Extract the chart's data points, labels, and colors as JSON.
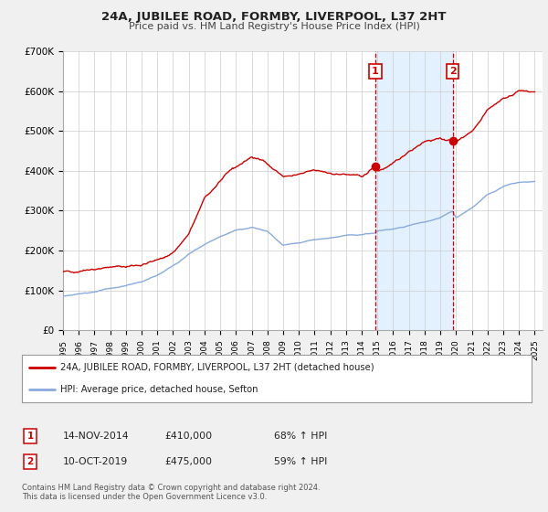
{
  "title": "24A, JUBILEE ROAD, FORMBY, LIVERPOOL, L37 2HT",
  "subtitle": "Price paid vs. HM Land Registry's House Price Index (HPI)",
  "ylim": [
    0,
    700000
  ],
  "xlim_start": 1995.0,
  "xlim_end": 2025.5,
  "yticks": [
    0,
    100000,
    200000,
    300000,
    400000,
    500000,
    600000,
    700000
  ],
  "ytick_labels": [
    "£0",
    "£100K",
    "£200K",
    "£300K",
    "£400K",
    "£500K",
    "£600K",
    "£700K"
  ],
  "xtick_years": [
    1995,
    1996,
    1997,
    1998,
    1999,
    2000,
    2001,
    2002,
    2003,
    2004,
    2005,
    2006,
    2007,
    2008,
    2009,
    2010,
    2011,
    2012,
    2013,
    2014,
    2015,
    2016,
    2017,
    2018,
    2019,
    2020,
    2021,
    2022,
    2023,
    2024,
    2025
  ],
  "house_color": "#cc0000",
  "hpi_color": "#88aadd",
  "shade_color": "#ddeeff",
  "marker1_x": 2014.87,
  "marker1_y": 410000,
  "marker2_x": 2019.78,
  "marker2_y": 475000,
  "vline1_x": 2014.87,
  "vline2_x": 2019.78,
  "legend_house_label": "24A, JUBILEE ROAD, FORMBY, LIVERPOOL, L37 2HT (detached house)",
  "legend_hpi_label": "HPI: Average price, detached house, Sefton",
  "annotation1_date": "14-NOV-2014",
  "annotation1_price": "£410,000",
  "annotation1_hpi": "68% ↑ HPI",
  "annotation2_date": "10-OCT-2019",
  "annotation2_price": "£475,000",
  "annotation2_hpi": "59% ↑ HPI",
  "footnote1": "Contains HM Land Registry data © Crown copyright and database right 2024.",
  "footnote2": "This data is licensed under the Open Government Licence v3.0.",
  "background_color": "#f0f0f0",
  "plot_bg_color": "#ffffff",
  "grid_color": "#cccccc"
}
